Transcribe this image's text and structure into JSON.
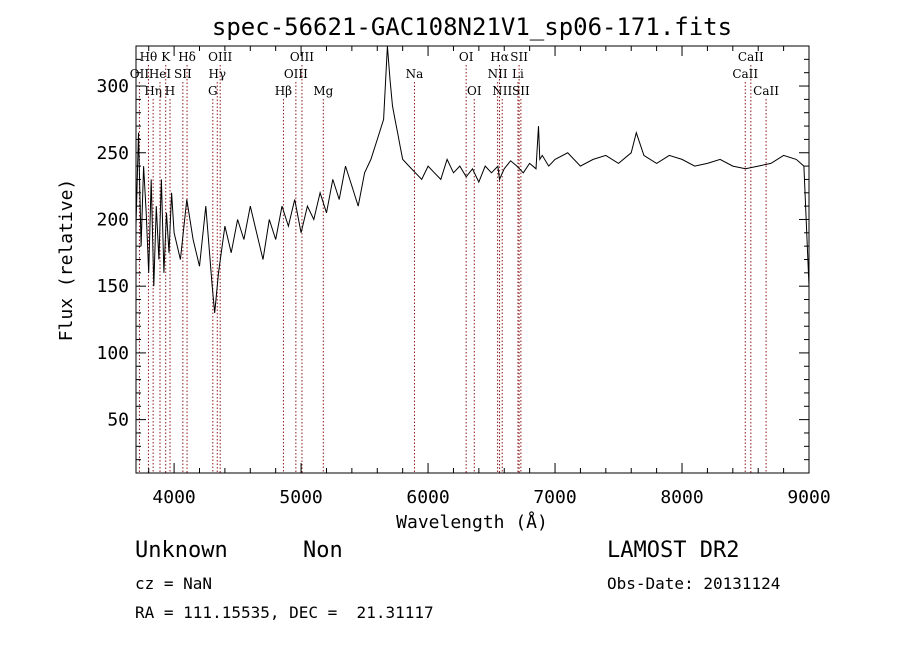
{
  "chart_data": {
    "type": "line",
    "title": "spec-56621-GAC108N21V1_sp06-171.fits",
    "xlabel": "Wavelength (Å)",
    "ylabel": "Flux (relative)",
    "xlim": [
      3700,
      9000
    ],
    "ylim": [
      10,
      330
    ],
    "xticks": [
      4000,
      5000,
      6000,
      7000,
      8000,
      9000
    ],
    "yticks": [
      50,
      100,
      150,
      200,
      250,
      300
    ],
    "grid": false,
    "line_color": "#000000",
    "marker_color": "#8b1a1a",
    "series": [
      {
        "x": [
          3700,
          3720,
          3740,
          3760,
          3780,
          3800,
          3820,
          3840,
          3860,
          3880,
          3900,
          3920,
          3940,
          3960,
          3980,
          4000,
          4050,
          4100,
          4150,
          4200,
          4250,
          4300,
          4320,
          4350,
          4400,
          4450,
          4500,
          4550,
          4600,
          4650,
          4700,
          4750,
          4800,
          4850,
          4900,
          4950,
          5000,
          5050,
          5100,
          5150,
          5200,
          5250,
          5300,
          5350,
          5400,
          5450,
          5500,
          5550,
          5600,
          5650,
          5680,
          5700,
          5720,
          5740,
          5760,
          5780,
          5800,
          5850,
          5900,
          5950,
          6000,
          6050,
          6100,
          6150,
          6200,
          6250,
          6300,
          6350,
          6400,
          6450,
          6500,
          6550,
          6563,
          6600,
          6650,
          6700,
          6750,
          6800,
          6850,
          6870,
          6880,
          6900,
          6950,
          7000,
          7100,
          7200,
          7300,
          7400,
          7500,
          7600,
          7640,
          7700,
          7800,
          7900,
          8000,
          8100,
          8200,
          8300,
          8400,
          8500,
          8600,
          8700,
          8800,
          8900,
          8960,
          9000
        ],
        "y": [
          195,
          265,
          180,
          240,
          205,
          160,
          230,
          150,
          210,
          170,
          230,
          160,
          205,
          175,
          220,
          190,
          170,
          215,
          185,
          165,
          210,
          150,
          130,
          160,
          195,
          175,
          200,
          185,
          210,
          190,
          170,
          200,
          185,
          210,
          195,
          215,
          190,
          210,
          200,
          220,
          205,
          230,
          215,
          240,
          225,
          210,
          235,
          245,
          260,
          275,
          330,
          305,
          285,
          275,
          265,
          255,
          245,
          240,
          235,
          230,
          240,
          235,
          230,
          245,
          235,
          240,
          232,
          238,
          228,
          240,
          235,
          240,
          230,
          238,
          244,
          240,
          235,
          242,
          238,
          270,
          245,
          248,
          240,
          245,
          250,
          240,
          245,
          248,
          242,
          250,
          265,
          248,
          242,
          248,
          245,
          240,
          242,
          245,
          240,
          238,
          240,
          242,
          248,
          245,
          240,
          150
        ]
      }
    ],
    "line_markers": [
      {
        "label": "Hθ",
        "wavelength": 3798,
        "row": 0
      },
      {
        "label": "OII",
        "wavelength": 3727,
        "row": 1
      },
      {
        "label": "Hη",
        "wavelength": 3835,
        "row": 2
      },
      {
        "label": "HeI",
        "wavelength": 3889,
        "row": 1
      },
      {
        "label": "K",
        "wavelength": 3934,
        "row": 0
      },
      {
        "label": "SII",
        "wavelength": 4069,
        "row": 1
      },
      {
        "label": "H",
        "wavelength": 3968,
        "row": 2
      },
      {
        "label": "Hδ",
        "wavelength": 4102,
        "row": 0
      },
      {
        "label": "OIII",
        "wavelength": 4363,
        "row": 0
      },
      {
        "label": "Hγ",
        "wavelength": 4340,
        "row": 1
      },
      {
        "label": "G",
        "wavelength": 4305,
        "row": 2
      },
      {
        "label": "Hβ",
        "wavelength": 4861,
        "row": 2
      },
      {
        "label": "OIII",
        "wavelength": 5007,
        "row": 0
      },
      {
        "label": "OIII",
        "wavelength": 4959,
        "row": 1
      },
      {
        "label": "Mg",
        "wavelength": 5175,
        "row": 2
      },
      {
        "label": "Na",
        "wavelength": 5893,
        "row": 1
      },
      {
        "label": "OI",
        "wavelength": 6300,
        "row": 0
      },
      {
        "label": "OI",
        "wavelength": 6364,
        "row": 2
      },
      {
        "label": "Hα",
        "wavelength": 6563,
        "row": 0
      },
      {
        "label": "NII",
        "wavelength": 6548,
        "row": 1
      },
      {
        "label": "NII",
        "wavelength": 6584,
        "row": 2
      },
      {
        "label": "SII",
        "wavelength": 6717,
        "row": 0
      },
      {
        "label": "Li",
        "wavelength": 6708,
        "row": 1
      },
      {
        "label": "SII",
        "wavelength": 6731,
        "row": 2
      },
      {
        "label": "CaII",
        "wavelength": 8542,
        "row": 0
      },
      {
        "label": "CaII",
        "wavelength": 8498,
        "row": 1
      },
      {
        "label": "CaII",
        "wavelength": 8662,
        "row": 2
      }
    ]
  },
  "info": {
    "class_label": "Unknown",
    "subclass_label": "Non",
    "survey_label": "LAMOST DR2",
    "cz_label": "cz = NaN",
    "obs_date_label": "Obs-Date: 20131124",
    "coords_label": "RA = 111.15535, DEC =  21.31117"
  }
}
